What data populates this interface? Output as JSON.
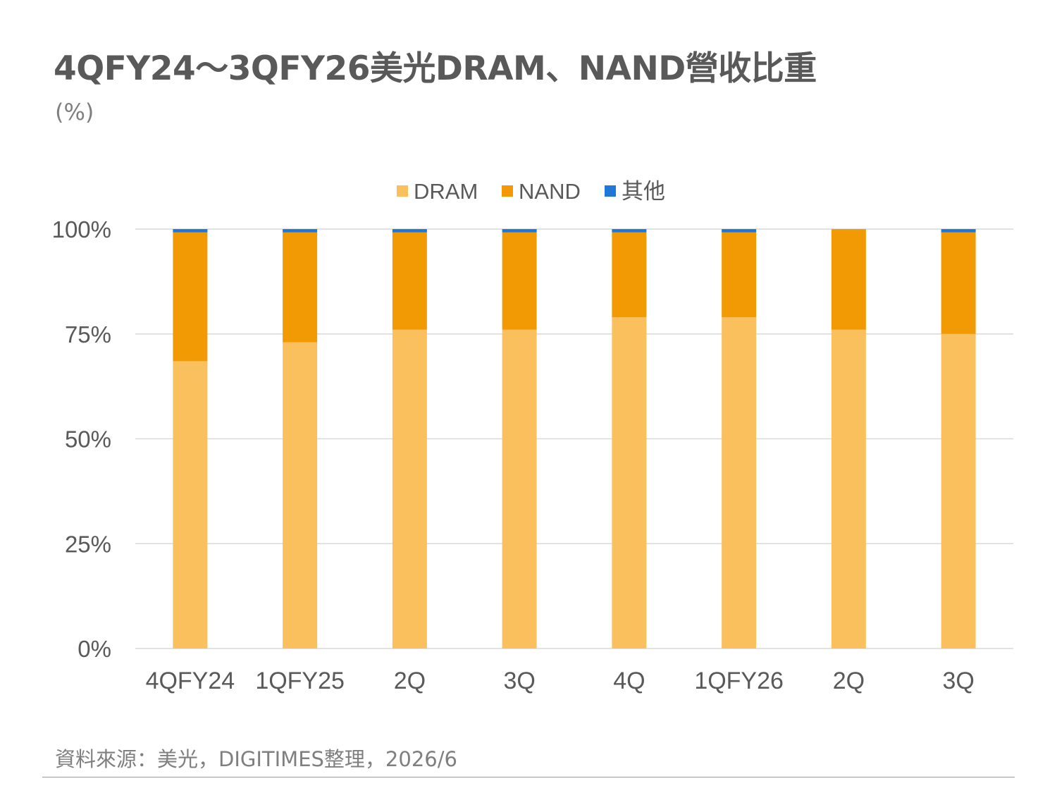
{
  "title": "4QFY24～3QFY26美光DRAM、NAND營收比重",
  "unit_label": "(%)",
  "source": "資料來源：美光，DIGITIMES整理，2026/6",
  "colors": {
    "DRAM": "#fac05e",
    "NAND": "#f29a04",
    "其他": "#1f78d8",
    "grid": "#d9d9d9",
    "tick_text": "#595959"
  },
  "chart_data": {
    "type": "bar",
    "stacked": true,
    "categories": [
      "4QFY24",
      "1QFY25",
      "2Q",
      "3Q",
      "4Q",
      "1QFY26",
      "2Q",
      "3Q"
    ],
    "series": [
      {
        "name": "DRAM",
        "values": [
          68.5,
          73,
          76,
          76,
          79,
          79,
          76,
          75
        ]
      },
      {
        "name": "NAND",
        "values": [
          30.7,
          26.2,
          23.2,
          23.2,
          20.2,
          20.2,
          24,
          24.2
        ]
      },
      {
        "name": "其他",
        "values": [
          0.8,
          0.8,
          0.8,
          0.8,
          0.8,
          0.8,
          0,
          0.8
        ]
      }
    ],
    "ylim": [
      0,
      100
    ],
    "yticks": [
      "0%",
      "25%",
      "50%",
      "75%",
      "100%"
    ],
    "grid": true,
    "legend_position": "top-center"
  }
}
